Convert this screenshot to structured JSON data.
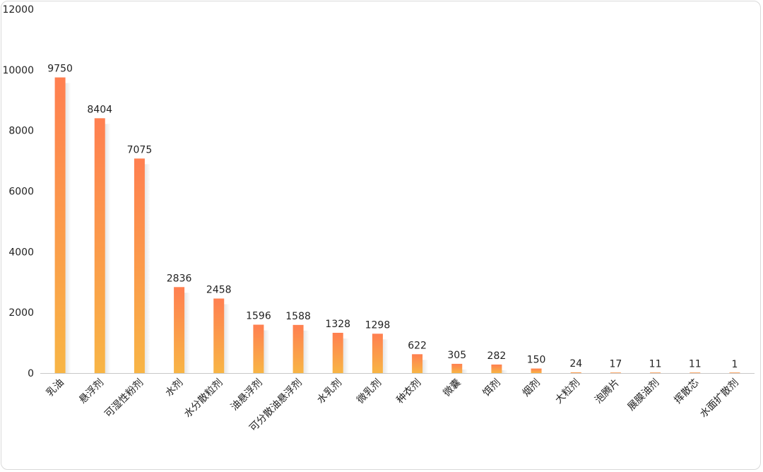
{
  "chart_data": {
    "type": "bar",
    "title": "",
    "xlabel": "",
    "ylabel": "",
    "ylim": [
      0,
      12000
    ],
    "yticks": [
      0,
      2000,
      4000,
      6000,
      8000,
      10000,
      12000
    ],
    "grid": false,
    "legend": "none",
    "categories": [
      "乳油",
      "悬浮剂",
      "可湿性粉剂",
      "水剂",
      "水分散粒剂",
      "油悬浮剂",
      "可分散油悬浮剂",
      "水乳剂",
      "微乳剂",
      "种衣剂",
      "微囊",
      "饵剂",
      "烟剂",
      "大粒剂",
      "泡腾片",
      "展膜油剂",
      "挥散芯",
      "水面扩散剂"
    ],
    "values": [
      9750,
      8404,
      7075,
      2836,
      2458,
      1596,
      1588,
      1328,
      1298,
      622,
      305,
      282,
      150,
      24,
      17,
      11,
      11,
      1
    ],
    "colors": {
      "bar_top": "#ff7f50",
      "bar_bottom": "#f8b545",
      "axis": "#c8c8c8",
      "text": "#222222"
    }
  }
}
